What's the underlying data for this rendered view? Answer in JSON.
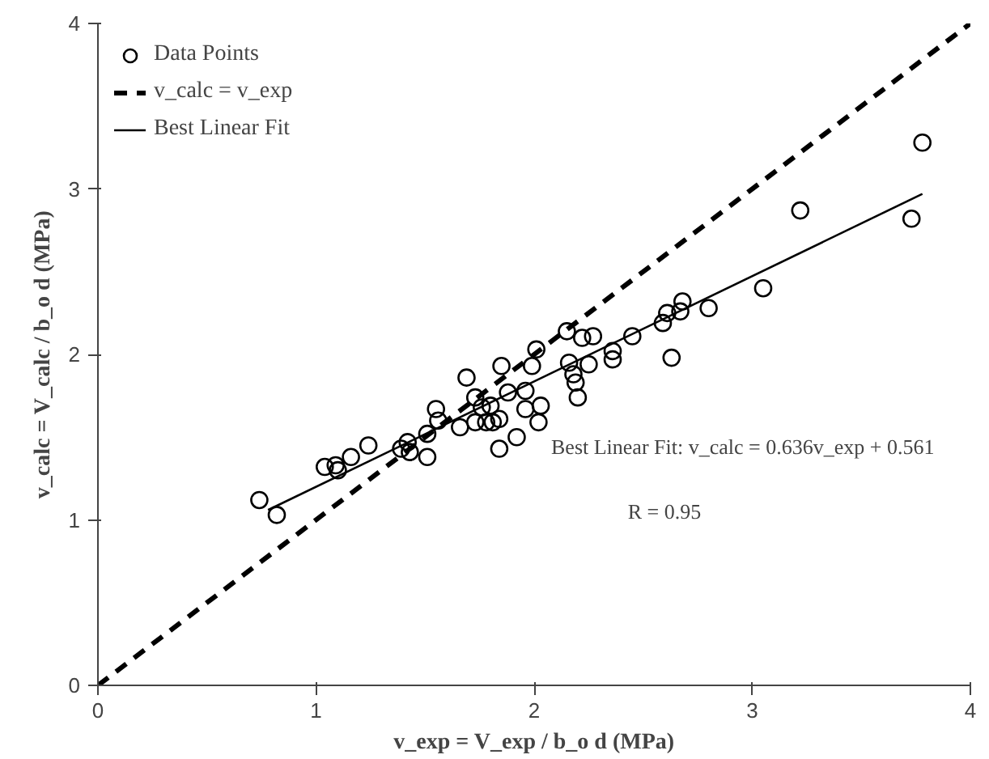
{
  "chart_data": {
    "type": "scatter",
    "xlabel": "v_exp = V_exp / b_o d (MPa)",
    "ylabel": "v_calc = V_calc / b_o d (MPa)",
    "xlim": [
      0,
      4
    ],
    "ylim": [
      0,
      4
    ],
    "xticks": [
      0,
      1,
      2,
      3,
      4
    ],
    "yticks": [
      0,
      1,
      2,
      3,
      4
    ],
    "grid": false,
    "legend": "top left",
    "series": [
      {
        "name": "Data Points",
        "marker": "circle",
        "color": "#000000",
        "x": [
          0.74,
          0.82,
          1.04,
          1.09,
          1.1,
          1.16,
          1.24,
          1.39,
          1.42,
          1.43,
          1.51,
          1.51,
          1.55,
          1.56,
          1.66,
          1.69,
          1.73,
          1.73,
          1.76,
          1.78,
          1.81,
          1.84,
          1.85,
          1.84,
          1.92,
          1.88,
          1.96,
          1.96,
          1.99,
          2.01,
          2.03,
          2.02,
          1.8,
          2.15,
          2.22,
          2.27,
          2.16,
          2.18,
          2.19,
          2.2,
          2.25,
          2.36,
          2.36,
          2.45,
          2.59,
          2.61,
          2.67,
          2.68,
          2.63,
          2.8,
          3.05,
          3.22,
          3.73,
          3.78
        ],
        "values": [
          1.12,
          1.03,
          1.32,
          1.33,
          1.3,
          1.38,
          1.45,
          1.43,
          1.47,
          1.41,
          1.38,
          1.52,
          1.67,
          1.6,
          1.56,
          1.86,
          1.74,
          1.59,
          1.68,
          1.59,
          1.59,
          1.61,
          1.93,
          1.43,
          1.5,
          1.77,
          1.78,
          1.67,
          1.93,
          2.03,
          1.69,
          1.59,
          1.69,
          2.14,
          2.1,
          2.11,
          1.95,
          1.88,
          1.83,
          1.74,
          1.94,
          2.02,
          1.97,
          2.11,
          2.19,
          2.25,
          2.26,
          2.32,
          1.98,
          2.28,
          2.4,
          2.87,
          2.82,
          3.28
        ]
      },
      {
        "name": "v_calc = v_exp",
        "type": "line",
        "line_style": "dashed",
        "color": "#000000",
        "x": [
          0,
          4
        ],
        "values": [
          0,
          4
        ]
      },
      {
        "name": "Best Linear Fit",
        "type": "line",
        "line_style": "solid",
        "color": "#000000",
        "x": [
          0.78,
          3.78
        ],
        "values": [
          1.06,
          2.97
        ]
      }
    ],
    "annotations": [
      "Best Linear Fit: v_calc = 0.636v_exp + 0.561",
      "R = 0.95"
    ]
  }
}
